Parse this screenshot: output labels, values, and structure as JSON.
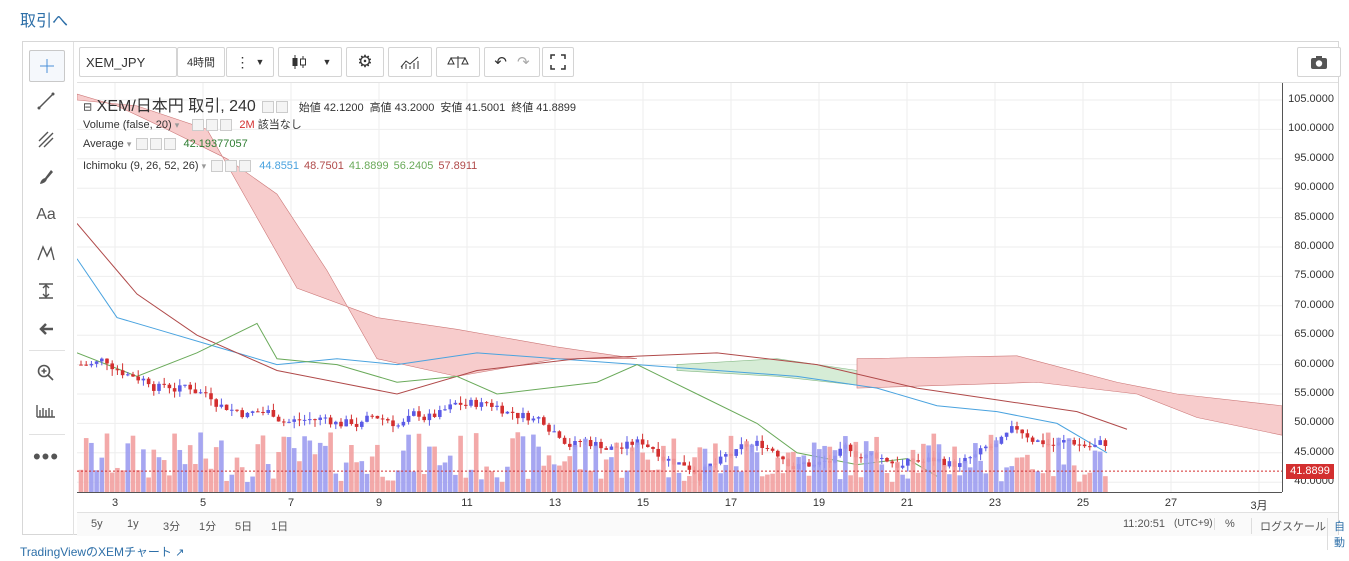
{
  "page": {
    "top_link": "取引へ",
    "footer_link": "TradingViewのXEMチャート",
    "footer_icon": "external-link-icon"
  },
  "toolbar": {
    "symbol": "XEM_JPY",
    "interval": "4時間"
  },
  "legend": {
    "title": "XEM/日本円 取引, 240",
    "ohlc": [
      {
        "label": "始値",
        "value": "42.1200"
      },
      {
        "label": "高値",
        "value": "43.2000"
      },
      {
        "label": "安値",
        "value": "41.5001"
      },
      {
        "label": "終値",
        "value": "41.8899"
      }
    ],
    "volume_name": "Volume (false, 20)",
    "volume_value": "2M",
    "volume_note": "該当なし",
    "average_name": "Average",
    "average_value": "42.19377057",
    "ichimoku_name": "Ichimoku (9, 26, 52, 26)",
    "ichimoku_values": [
      "44.8551",
      "48.7501",
      "41.8899",
      "56.2405",
      "57.8911"
    ]
  },
  "price_axis": {
    "ticks": [
      "105.0000",
      "100.0000",
      "95.0000",
      "90.0000",
      "85.0000",
      "80.0000",
      "75.0000",
      "70.0000",
      "65.0000",
      "60.0000",
      "55.0000",
      "50.0000",
      "45.0000",
      "40.0000"
    ],
    "current_price": "41.8899"
  },
  "time_axis": {
    "labels": [
      "3",
      "5",
      "7",
      "9",
      "11",
      "13",
      "15",
      "17",
      "19",
      "21",
      "23",
      "25",
      "27",
      "3月"
    ]
  },
  "bottom": {
    "ranges": [
      "5y",
      "1y",
      "3分",
      "1分",
      "5日",
      "1日"
    ],
    "time": "11:20:51",
    "tz": "(UTC+9)",
    "percent": "%",
    "log": "ログスケール",
    "auto": "自動"
  },
  "colors": {
    "up": "#5b5be6",
    "down": "#d32f2f",
    "vol_up": "#9c9cf0",
    "vol_down": "#f2a0a0",
    "cloud_red": "#f7cccc",
    "cloud_green": "#d6ecd6",
    "conv": "#4aa3df",
    "base": "#b04a4a",
    "lag": "#6aaa5a"
  }
}
